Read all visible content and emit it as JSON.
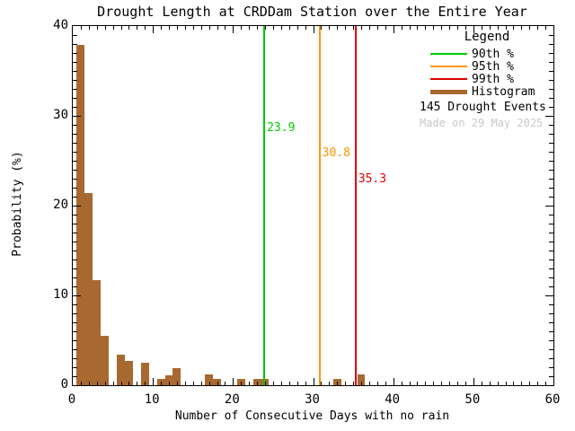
{
  "title": "Drought Length at CRDDam Station over the Entire Year",
  "legend": {
    "title": "Legend",
    "entries": [
      {
        "label": "90th %",
        "color": "#00cc00",
        "style": "thin"
      },
      {
        "label": "95th %",
        "color": "#ff9600",
        "style": "thin"
      },
      {
        "label": "99th %",
        "color": "#dd0000",
        "style": "thin"
      },
      {
        "label": "Histogram",
        "color": "#a86930",
        "style": "thick"
      }
    ],
    "events_text": "145 Drought Events",
    "made_on": "Made on 29 May 2025"
  },
  "colors": {
    "histogram": "#a86930",
    "p90": "#00cc00",
    "p95": "#ff9600",
    "p99": "#dd0000",
    "made_on_text": "#c8c8c8",
    "axis": "#000000"
  },
  "chart_data": {
    "type": "bar",
    "title": "Drought Length at CRDDam Station over the Entire Year",
    "xlabel": "Number of Consecutive Days with no rain",
    "ylabel": "Probability (%)",
    "xlim": [
      0,
      60
    ],
    "ylim": [
      0,
      40
    ],
    "xticks": [
      0,
      10,
      20,
      30,
      40,
      50,
      60
    ],
    "yticks": [
      0,
      10,
      20,
      30,
      40
    ],
    "x_minor_step": 1,
    "y_minor_step": 1,
    "grid": false,
    "bin_width_days": 1,
    "n_events": 145,
    "bars": [
      {
        "day": 1,
        "pct": 37.9
      },
      {
        "day": 2,
        "pct": 21.4
      },
      {
        "day": 3,
        "pct": 11.7
      },
      {
        "day": 4,
        "pct": 5.5
      },
      {
        "day": 6,
        "pct": 3.4
      },
      {
        "day": 7,
        "pct": 2.7
      },
      {
        "day": 9,
        "pct": 2.5
      },
      {
        "day": 11,
        "pct": 0.7
      },
      {
        "day": 12,
        "pct": 1.1
      },
      {
        "day": 13,
        "pct": 1.9
      },
      {
        "day": 17,
        "pct": 1.2
      },
      {
        "day": 18,
        "pct": 0.7
      },
      {
        "day": 21,
        "pct": 0.7
      },
      {
        "day": 23,
        "pct": 0.7
      },
      {
        "day": 24,
        "pct": 0.7
      },
      {
        "day": 33,
        "pct": 0.7
      },
      {
        "day": 36,
        "pct": 1.2
      }
    ],
    "percentiles": [
      {
        "name": "90th %",
        "value": 23.9,
        "label": "23.9",
        "color": "#00cc00"
      },
      {
        "name": "95th %",
        "value": 30.8,
        "label": "30.8",
        "color": "#ff9600"
      },
      {
        "name": "99th %",
        "value": 35.3,
        "label": "35.3",
        "color": "#dd0000"
      }
    ],
    "legend_position": "top-right"
  }
}
